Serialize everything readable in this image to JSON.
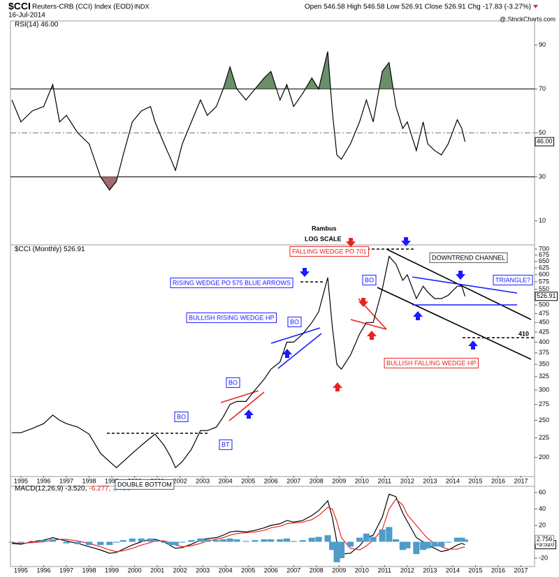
{
  "header": {
    "symbol": "$CCI",
    "name": "Reuters-CRB (CCI) Index (EOD)",
    "exchange": "INDX",
    "date": "16-Jul-2014",
    "quote": "Open 546.58  High 546.58  Low 526.91  Close 526.91  Chg -17.83 (-3.27%)",
    "source": "@ StockCharts.com"
  },
  "chart_data": [
    {
      "type": "line",
      "xlim": [
        1994.54,
        2017.6
      ],
      "ylim": [
        0,
        100
      ],
      "yticks": [
        10,
        30,
        50,
        70,
        90
      ],
      "overbought": 70,
      "oversold": 30,
      "centerline": 50,
      "overbought_color": "#6b8e6b",
      "oversold_color": "#a86a6a",
      "x": [
        1994.6,
        1995.0,
        1995.5,
        1996.0,
        1996.4,
        1996.7,
        1997.0,
        1997.5,
        1998.0,
        1998.5,
        1998.9,
        1999.2,
        1999.5,
        1999.9,
        2000.3,
        2000.7,
        2000.9,
        2001.3,
        2001.6,
        2001.8,
        2002.1,
        2002.5,
        2002.9,
        2003.2,
        2003.6,
        2003.9,
        2004.2,
        2004.5,
        2004.9,
        2005.3,
        2005.7,
        2006.0,
        2006.4,
        2006.7,
        2007.0,
        2007.4,
        2007.8,
        2008.1,
        2008.5,
        2008.7,
        2008.9,
        2009.1,
        2009.5,
        2009.9,
        2010.2,
        2010.5,
        2010.9,
        2011.2,
        2011.5,
        2011.8,
        2012.0,
        2012.4,
        2012.7,
        2012.9,
        2013.2,
        2013.5,
        2013.8,
        2014.2,
        2014.4,
        2014.54
      ],
      "series": [
        {
          "name": "RSI(14) 46.00",
          "color": "#000000",
          "last_label": "46.00",
          "values": [
            65,
            55,
            60,
            62,
            72,
            55,
            58,
            50,
            45,
            30,
            24,
            28,
            40,
            55,
            60,
            62,
            55,
            45,
            38,
            33,
            45,
            55,
            65,
            58,
            62,
            70,
            80,
            70,
            65,
            70,
            75,
            78,
            65,
            72,
            62,
            68,
            75,
            70,
            87,
            60,
            40,
            38,
            45,
            55,
            65,
            55,
            78,
            82,
            62,
            52,
            55,
            42,
            55,
            45,
            42,
            40,
            45,
            56,
            52,
            46
          ]
        }
      ]
    },
    {
      "type": "line",
      "log_scale": true,
      "xlim": [
        1994.54,
        2017.6
      ],
      "ylim": [
        179,
        706
      ],
      "xticks": [
        1995,
        1996,
        1997,
        1998,
        1999,
        2000,
        2001,
        2002,
        2003,
        2004,
        2005,
        2006,
        2007,
        2008,
        2009,
        2010,
        2011,
        2012,
        2013,
        2014,
        2015,
        2016,
        2017
      ],
      "yticks": [
        200,
        225,
        250,
        275,
        300,
        325,
        350,
        375,
        400,
        425,
        450,
        475,
        500,
        525,
        550,
        575,
        600,
        625,
        650,
        675,
        700
      ],
      "x": [
        1994.6,
        1995.0,
        1995.5,
        1996.0,
        1996.4,
        1996.7,
        1997.0,
        1997.5,
        1998.0,
        1998.5,
        1998.9,
        1999.2,
        1999.5,
        1999.9,
        2000.3,
        2000.7,
        2000.9,
        2001.3,
        2001.6,
        2001.8,
        2002.1,
        2002.5,
        2002.9,
        2003.2,
        2003.6,
        2003.9,
        2004.2,
        2004.5,
        2004.9,
        2005.3,
        2005.7,
        2006.0,
        2006.4,
        2006.7,
        2007.0,
        2007.4,
        2007.8,
        2008.1,
        2008.5,
        2008.7,
        2008.9,
        2009.1,
        2009.5,
        2009.9,
        2010.2,
        2010.5,
        2010.9,
        2011.2,
        2011.5,
        2011.8,
        2012.0,
        2012.4,
        2012.7,
        2012.9,
        2013.2,
        2013.5,
        2013.8,
        2014.2,
        2014.4,
        2014.54
      ],
      "series": [
        {
          "name": "$CCI (Monthly) 526.91",
          "color": "#000000",
          "last_label": "526.91",
          "values": [
            232,
            232,
            238,
            245,
            258,
            250,
            245,
            240,
            230,
            205,
            195,
            188,
            195,
            205,
            215,
            225,
            230,
            215,
            200,
            188,
            195,
            210,
            235,
            235,
            240,
            255,
            275,
            280,
            280,
            300,
            320,
            340,
            355,
            400,
            400,
            420,
            450,
            480,
            590,
            440,
            350,
            340,
            370,
            420,
            450,
            450,
            550,
            670,
            640,
            580,
            600,
            520,
            560,
            540,
            520,
            520,
            530,
            560,
            560,
            526.91
          ]
        }
      ],
      "annotations": [
        "Rambus",
        "LOG SCALE",
        "FALLING WEDGE PO 701",
        "DOWNTREND CHANNEL",
        "TRIANGLE?",
        "RISING WEDGE PO 575 BLUE ARROWS",
        "BULLISH RISING WEDGE HP",
        "BO",
        "BO",
        "BO",
        "BO",
        "BT",
        "DOUBLE BOTTOM",
        "BULLISH FALLING WEDGE HP",
        "410"
      ]
    },
    {
      "type": "line",
      "xlim": [
        1994.54,
        2017.6
      ],
      "ylim": [
        -28.5,
        66.8
      ],
      "yticks": [
        -20,
        0,
        20,
        40,
        60
      ],
      "xticks": [
        1995,
        1996,
        1997,
        1998,
        1999,
        2000,
        2001,
        2002,
        2003,
        2004,
        2005,
        2006,
        2007,
        2008,
        2009,
        2010,
        2011,
        2012,
        2013,
        2014,
        2015,
        2016,
        2017
      ],
      "x": [
        1994.6,
        1995.0,
        1995.5,
        1996.0,
        1996.4,
        1996.7,
        1997.0,
        1997.5,
        1998.0,
        1998.5,
        1998.9,
        1999.2,
        1999.5,
        1999.9,
        2000.3,
        2000.7,
        2000.9,
        2001.3,
        2001.6,
        2001.8,
        2002.1,
        2002.5,
        2002.9,
        2003.2,
        2003.6,
        2003.9,
        2004.2,
        2004.5,
        2004.9,
        2005.3,
        2005.7,
        2006.0,
        2006.4,
        2006.7,
        2007.0,
        2007.4,
        2007.8,
        2008.1,
        2008.5,
        2008.7,
        2008.9,
        2009.1,
        2009.5,
        2009.9,
        2010.2,
        2010.5,
        2010.9,
        2011.2,
        2011.5,
        2011.8,
        2012.0,
        2012.4,
        2012.7,
        2012.9,
        2013.2,
        2013.5,
        2013.8,
        2014.2,
        2014.4,
        2014.54
      ],
      "series": [
        {
          "name": "MACD(12,26,9) -3.520,",
          "color": "#000000",
          "last_label": "-3.520",
          "values": [
            -2,
            -3,
            0,
            2,
            5,
            3,
            1,
            -2,
            -6,
            -10,
            -14,
            -13,
            -9,
            -4,
            0,
            3,
            3,
            0,
            -5,
            -8,
            -7,
            -3,
            2,
            4,
            5,
            8,
            12,
            13,
            12,
            14,
            17,
            20,
            22,
            26,
            24,
            26,
            32,
            38,
            50,
            30,
            0,
            -15,
            -14,
            -5,
            5,
            8,
            30,
            58,
            55,
            35,
            25,
            5,
            0,
            -4,
            -8,
            -12,
            -10,
            -4,
            -2,
            -3.52
          ]
        },
        {
          "name": "-6.277,",
          "color": "#e8231f",
          "values": [
            -1,
            -2,
            -1,
            0,
            2,
            3,
            3,
            1,
            -2,
            -6,
            -10,
            -12,
            -11,
            -8,
            -4,
            -1,
            1,
            1,
            -1,
            -4,
            -6,
            -5,
            -2,
            1,
            3,
            5,
            8,
            10,
            11,
            12,
            14,
            17,
            19,
            22,
            23,
            24,
            27,
            32,
            42,
            40,
            25,
            5,
            -8,
            -10,
            -5,
            2,
            15,
            40,
            52,
            45,
            33,
            20,
            10,
            4,
            -2,
            -6,
            -9,
            -9,
            -7,
            -6.277
          ]
        },
        {
          "name": "2.756",
          "color": "#4f9bc9",
          "style": "bar",
          "last_label": "2.756",
          "values": [
            -1,
            -1,
            1,
            2,
            3,
            0,
            -2,
            -3,
            -4,
            -4,
            -4,
            -1,
            2,
            4,
            4,
            4,
            2,
            -1,
            -4,
            -4,
            -1,
            2,
            4,
            3,
            2,
            3,
            4,
            3,
            1,
            2,
            3,
            3,
            3,
            4,
            1,
            2,
            5,
            6,
            8,
            -10,
            -25,
            -20,
            -6,
            5,
            10,
            6,
            15,
            18,
            3,
            -10,
            -8,
            -15,
            -10,
            -8,
            -6,
            -6,
            -1,
            5,
            5,
            2.756
          ]
        }
      ]
    }
  ]
}
